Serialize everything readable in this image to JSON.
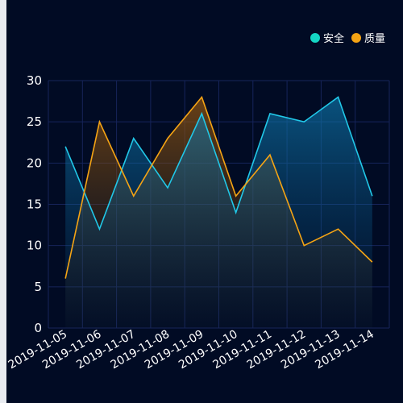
{
  "chart_data": {
    "type": "area",
    "categories": [
      "2019-11-05",
      "2019-11-06",
      "2019-11-07",
      "2019-11-08",
      "2019-11-09",
      "2019-11-10",
      "2019-11-11",
      "2019-11-12",
      "2019-11-13",
      "2019-11-14"
    ],
    "series": [
      {
        "name": "安全",
        "color": "#21c8e8",
        "dot_color": "#14d6c4",
        "values": [
          22,
          12,
          23,
          17,
          26,
          14,
          26,
          25,
          28,
          16
        ]
      },
      {
        "name": "质量",
        "color": "#f5a414",
        "dot_color": "#f5a414",
        "values": [
          6,
          25,
          16,
          23,
          28,
          16,
          21,
          10,
          12,
          8
        ]
      }
    ],
    "ylim": [
      0,
      30
    ],
    "yticks": [
      0,
      5,
      10,
      15,
      20,
      25,
      30
    ],
    "grid": true,
    "legend_position": "top-right",
    "background": "#010b24",
    "grid_color": "#16245a"
  }
}
